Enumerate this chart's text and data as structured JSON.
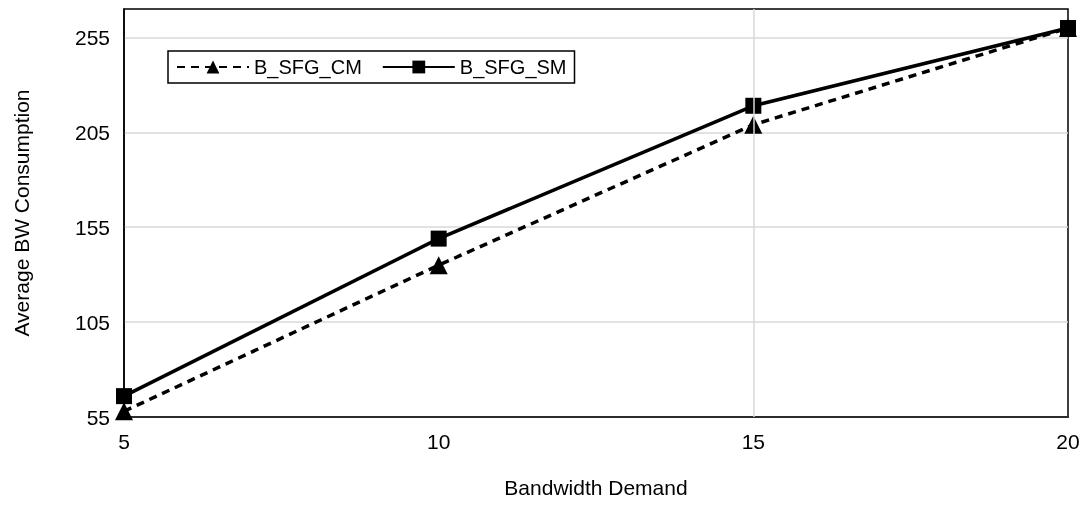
{
  "chart_data": {
    "type": "line",
    "xlabel": "Bandwidth Demand",
    "ylabel": "Average BW Consumption",
    "x": [
      5,
      10,
      15,
      20
    ],
    "series": [
      {
        "name": "B_SFG_CM",
        "color": "#000000",
        "marker": "triangle",
        "line_style": "dashed",
        "values": [
          58,
          135,
          209,
          260
        ]
      },
      {
        "name": "B_SFG_SM",
        "color": "#000000",
        "marker": "square",
        "line_style": "solid",
        "values": [
          66,
          149,
          219,
          260
        ]
      }
    ],
    "xlim": [
      5,
      20
    ],
    "xticks": [
      5,
      10,
      15,
      20
    ],
    "ylim": [
      55,
      270
    ],
    "yticks": [
      55,
      105,
      155,
      205,
      255
    ],
    "grid": "y",
    "legend": "top left",
    "ref_lines": [
      {
        "axis": "x",
        "value": 15,
        "color": "#d9d9d9",
        "line_style": "solid"
      }
    ]
  }
}
